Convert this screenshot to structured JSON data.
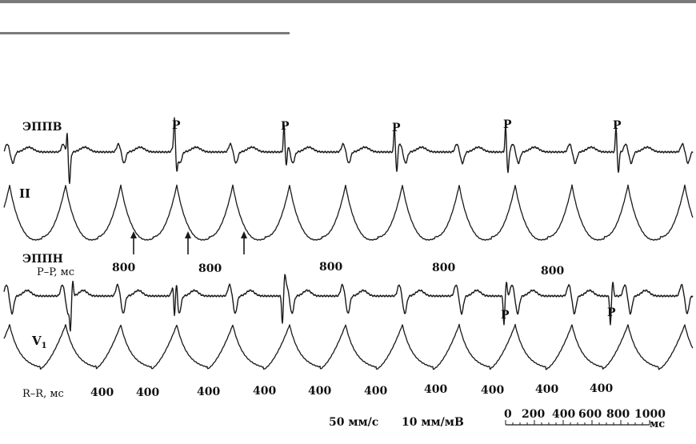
{
  "leads": {
    "esophageal_upper": "ЭППВ",
    "lead_ii": "II",
    "esophageal_lower": "ЭППН",
    "lead_v1_main": "V",
    "lead_v1_sub": "1"
  },
  "p_label": "P",
  "pp_label": "P–P, мс",
  "pp_values": [
    "800",
    "800",
    "800",
    "800",
    "800"
  ],
  "rr_label": "R–R,  мс",
  "rr_values": [
    "400",
    "400",
    "400",
    "400",
    "400",
    "400",
    "400",
    "400",
    "400",
    "400"
  ],
  "speed": "50 мм/с",
  "gain": "10 мм/мВ",
  "scale": {
    "ticks": [
      "0",
      "200",
      "400",
      "600",
      "800",
      "1000"
    ],
    "unit": "мс"
  },
  "colors": {
    "trace": "#1a1a1a",
    "rule": "#7a7a7a"
  }
}
